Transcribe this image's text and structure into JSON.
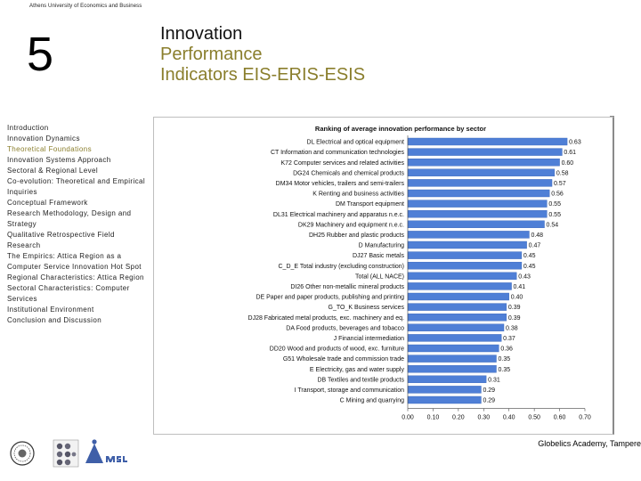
{
  "header": {
    "university": "Athens University of Economics and Business",
    "chapter_number": "5",
    "title_lines": [
      "Innovation",
      "Performance",
      "Indicators EIS-ERIS-ESIS"
    ]
  },
  "nav": {
    "items": [
      "Introduction",
      "Innovation Dynamics",
      "Theoretical Foundations",
      "Innovation Systems Approach",
      "Sectoral & Regional Level",
      "Co-evolution: Theoretical and Empirical Inquiries",
      "Conceptual Framework",
      "Research Methodology, Design and Strategy",
      "Qualitative Retrospective Field Research",
      "The Empirics: Attica Region as a Computer Service Innovation Hot Spot",
      "Regional Characteristics: Attica Region",
      "Sectoral Characteristics: Computer Services",
      "Institutional Environment",
      "Conclusion and Discussion"
    ],
    "active_index": 2
  },
  "colors": {
    "accent": "#8a7e2c",
    "bar": "#4f7fd6",
    "bar_edge": "#3a66b8"
  },
  "footer": {
    "text": "Globelics Academy, Tampere"
  },
  "chart_data": {
    "type": "bar",
    "orientation": "horizontal",
    "title": "Ranking of average innovation performance by sector",
    "categories": [
      "DL Electrical and optical equipment",
      "CT Information and communication technologies",
      "K72 Computer services and related activities",
      "DG24 Chemicals and chemical products",
      "DM34 Motor vehicles, trailers and semi-trailers",
      "K Renting and business activities",
      "DM Transport equipment",
      "DL31 Electrical machinery and apparatus n.e.c.",
      "DK29 Machinery and equipment n.e.c.",
      "DH25 Rubber and plastic products",
      "D Manufacturing",
      "DJ27 Basic metals",
      "C_D_E Total industry (excluding construction)",
      "Total (ALL NACE)",
      "DI26 Other non-metallic mineral products",
      "DE Paper and paper products, publishing and printing",
      "G_TO_K Business services",
      "DJ28 Fabricated metal products, exc. machinery and eq.",
      "DA Food products, beverages and tobacco",
      "J Financial intermediation",
      "DD20 Wood and products of wood, exc. furniture",
      "G51 Wholesale trade and commission trade",
      "E Electricity, gas and water supply",
      "DB Textiles and textile products",
      "I Transport, storage and communication",
      "C Mining and quarrying"
    ],
    "values": [
      0.63,
      0.61,
      0.6,
      0.58,
      0.57,
      0.56,
      0.55,
      0.55,
      0.54,
      0.48,
      0.47,
      0.45,
      0.45,
      0.43,
      0.41,
      0.4,
      0.39,
      0.39,
      0.38,
      0.37,
      0.36,
      0.35,
      0.35,
      0.31,
      0.29,
      0.29
    ],
    "value_labels": [
      "0.63",
      "0.61",
      "0.60",
      "0.58",
      "0.57",
      "0.56",
      "0.55",
      "0.55",
      "0.54",
      "0.48",
      "0.47",
      "0.45",
      "0.45",
      "0.43",
      "0.41",
      "0.40",
      "0.39",
      "0.39",
      "0.38",
      "0.37",
      "0.36",
      "0.35",
      "0.35",
      "0.31",
      "0.29",
      "0.29"
    ],
    "x_ticks": [
      "0.00",
      "0.10",
      "0.20",
      "0.30",
      "0.40",
      "0.50",
      "0.60",
      "0.70"
    ],
    "xlim": [
      0,
      0.7
    ],
    "grid": false,
    "legend": "none"
  }
}
